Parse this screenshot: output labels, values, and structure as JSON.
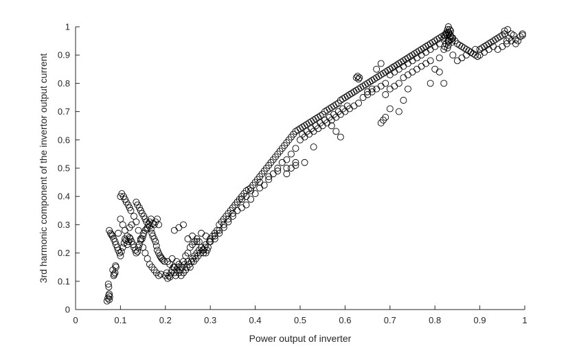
{
  "chart_data": {
    "type": "scatter",
    "title": "",
    "xlabel": "Power output of inverter",
    "ylabel": "3rd harmonic component of the invertor output current",
    "xlim": [
      0,
      1
    ],
    "ylim": [
      0,
      1
    ],
    "xticks": [
      "0",
      "0.1",
      "0.2",
      "0.3",
      "0.4",
      "0.5",
      "0.6",
      "0.7",
      "0.8",
      "0.9",
      "1"
    ],
    "yticks": [
      "0",
      "0.1",
      "0.2",
      "0.3",
      "0.4",
      "0.5",
      "0.6",
      "0.7",
      "0.8",
      "0.9",
      "1"
    ],
    "grid": false,
    "marker": "open-circle",
    "marker_color": "#000000",
    "series": [
      {
        "x": [
          0.07,
          0.072,
          0.074,
          0.075,
          0.076,
          0.074,
          0.073,
          0.075,
          0.085,
          0.088,
          0.09,
          0.083,
          0.086,
          0.089,
          0.075,
          0.078,
          0.08,
          0.082,
          0.085,
          0.088,
          0.09,
          0.093,
          0.095,
          0.098,
          0.1,
          0.102,
          0.105,
          0.108,
          0.11,
          0.112,
          0.115,
          0.118,
          0.12,
          0.122,
          0.125,
          0.128,
          0.13,
          0.133,
          0.135,
          0.138,
          0.14,
          0.142,
          0.145,
          0.148,
          0.15,
          0.152,
          0.155,
          0.158,
          0.16,
          0.162,
          0.165,
          0.168,
          0.17,
          0.172,
          0.175,
          0.178,
          0.18,
          0.182,
          0.185,
          0.188,
          0.19,
          0.192,
          0.195,
          0.198,
          0.1,
          0.103,
          0.107,
          0.11,
          0.113,
          0.117,
          0.12,
          0.123,
          0.135,
          0.138,
          0.142,
          0.145,
          0.148,
          0.152,
          0.155,
          0.158,
          0.165,
          0.168,
          0.172,
          0.175,
          0.178,
          0.182,
          0.185,
          0.095,
          0.1,
          0.105,
          0.11,
          0.115,
          0.12,
          0.125,
          0.13,
          0.135,
          0.14,
          0.145,
          0.15,
          0.155,
          0.16,
          0.165,
          0.17,
          0.175,
          0.18,
          0.185,
          0.19,
          0.2,
          0.203,
          0.205,
          0.208,
          0.21,
          0.213,
          0.215,
          0.218,
          0.22,
          0.223,
          0.225,
          0.228,
          0.23,
          0.233,
          0.235,
          0.238,
          0.24,
          0.243,
          0.245,
          0.248,
          0.25,
          0.253,
          0.255,
          0.258,
          0.26,
          0.263,
          0.265,
          0.268,
          0.27,
          0.273,
          0.275,
          0.278,
          0.28,
          0.283,
          0.285,
          0.288,
          0.29,
          0.293,
          0.295,
          0.298,
          0.205,
          0.21,
          0.215,
          0.22,
          0.225,
          0.23,
          0.235,
          0.24,
          0.245,
          0.25,
          0.255,
          0.26,
          0.265,
          0.27,
          0.275,
          0.28,
          0.285,
          0.29,
          0.22,
          0.23,
          0.24,
          0.25,
          0.26,
          0.27,
          0.28,
          0.29,
          0.3,
          0.305,
          0.31,
          0.315,
          0.32,
          0.325,
          0.33,
          0.335,
          0.34,
          0.345,
          0.35,
          0.355,
          0.36,
          0.365,
          0.37,
          0.375,
          0.38,
          0.385,
          0.39,
          0.395,
          0.4,
          0.405,
          0.41,
          0.415,
          0.42,
          0.425,
          0.43,
          0.435,
          0.44,
          0.445,
          0.45,
          0.455,
          0.46,
          0.465,
          0.47,
          0.475,
          0.48,
          0.485,
          0.49,
          0.495,
          0.3,
          0.31,
          0.32,
          0.33,
          0.34,
          0.35,
          0.36,
          0.37,
          0.38,
          0.39,
          0.4,
          0.41,
          0.42,
          0.43,
          0.44,
          0.45,
          0.46,
          0.47,
          0.48,
          0.49,
          0.31,
          0.32,
          0.33,
          0.34,
          0.35,
          0.36,
          0.37,
          0.38,
          0.39,
          0.41,
          0.43,
          0.45,
          0.47,
          0.49,
          0.5,
          0.505,
          0.51,
          0.515,
          0.52,
          0.525,
          0.53,
          0.535,
          0.54,
          0.545,
          0.55,
          0.555,
          0.56,
          0.565,
          0.57,
          0.575,
          0.58,
          0.585,
          0.59,
          0.595,
          0.6,
          0.605,
          0.61,
          0.615,
          0.62,
          0.625,
          0.63,
          0.635,
          0.64,
          0.645,
          0.65,
          0.655,
          0.66,
          0.665,
          0.67,
          0.675,
          0.68,
          0.685,
          0.69,
          0.695,
          0.5,
          0.51,
          0.52,
          0.53,
          0.54,
          0.55,
          0.56,
          0.57,
          0.58,
          0.59,
          0.6,
          0.61,
          0.62,
          0.63,
          0.64,
          0.65,
          0.66,
          0.67,
          0.68,
          0.69,
          0.505,
          0.515,
          0.525,
          0.535,
          0.545,
          0.555,
          0.565,
          0.575,
          0.585,
          0.595,
          0.605,
          0.47,
          0.48,
          0.49,
          0.51,
          0.53,
          0.57,
          0.58,
          0.59,
          0.625,
          0.628,
          0.63,
          0.632,
          0.65,
          0.66,
          0.67,
          0.68,
          0.7,
          0.705,
          0.71,
          0.715,
          0.72,
          0.725,
          0.73,
          0.735,
          0.74,
          0.745,
          0.75,
          0.755,
          0.76,
          0.765,
          0.77,
          0.775,
          0.78,
          0.785,
          0.79,
          0.795,
          0.8,
          0.805,
          0.81,
          0.815,
          0.82,
          0.825,
          0.83,
          0.835,
          0.84,
          0.845,
          0.85,
          0.855,
          0.86,
          0.865,
          0.87,
          0.875,
          0.88,
          0.885,
          0.89,
          0.895,
          0.7,
          0.71,
          0.72,
          0.73,
          0.74,
          0.75,
          0.76,
          0.77,
          0.78,
          0.79,
          0.8,
          0.81,
          0.82,
          0.83,
          0.84,
          0.85,
          0.86,
          0.87,
          0.88,
          0.89,
          0.69,
          0.7,
          0.71,
          0.72,
          0.73,
          0.74,
          0.75,
          0.76,
          0.77,
          0.78,
          0.79,
          0.81,
          0.68,
          0.685,
          0.69,
          0.7,
          0.72,
          0.73,
          0.74,
          0.79,
          0.8,
          0.81,
          0.82,
          0.82,
          0.823,
          0.826,
          0.828,
          0.83,
          0.832,
          0.834,
          0.836,
          0.838,
          0.83,
          0.828,
          0.832,
          0.825,
          0.835,
          0.822,
          0.838,
          0.827,
          0.833,
          0.829,
          0.831,
          0.9,
          0.905,
          0.91,
          0.915,
          0.92,
          0.925,
          0.93,
          0.935,
          0.94,
          0.945,
          0.95,
          0.955,
          0.96,
          0.965,
          0.97,
          0.975,
          0.98,
          0.985,
          0.99,
          0.995,
          0.9,
          0.91,
          0.92,
          0.93,
          0.94,
          0.95,
          0.96,
          0.97,
          0.98,
          0.995,
          0.955,
          0.962
        ],
        "y": [
          0.03,
          0.04,
          0.05,
          0.035,
          0.045,
          0.08,
          0.09,
          0.055,
          0.12,
          0.13,
          0.15,
          0.14,
          0.125,
          0.155,
          0.28,
          0.27,
          0.265,
          0.26,
          0.25,
          0.24,
          0.23,
          0.22,
          0.21,
          0.2,
          0.19,
          0.205,
          0.22,
          0.235,
          0.25,
          0.245,
          0.23,
          0.24,
          0.255,
          0.25,
          0.24,
          0.23,
          0.22,
          0.21,
          0.2,
          0.205,
          0.22,
          0.23,
          0.245,
          0.25,
          0.26,
          0.27,
          0.28,
          0.285,
          0.29,
          0.3,
          0.295,
          0.285,
          0.27,
          0.26,
          0.25,
          0.24,
          0.225,
          0.21,
          0.2,
          0.19,
          0.185,
          0.18,
          0.175,
          0.17,
          0.4,
          0.41,
          0.4,
          0.39,
          0.38,
          0.37,
          0.36,
          0.35,
          0.38,
          0.37,
          0.36,
          0.35,
          0.34,
          0.33,
          0.32,
          0.31,
          0.31,
          0.32,
          0.305,
          0.3,
          0.31,
          0.32,
          0.3,
          0.27,
          0.32,
          0.3,
          0.28,
          0.26,
          0.29,
          0.3,
          0.33,
          0.31,
          0.28,
          0.25,
          0.22,
          0.2,
          0.18,
          0.16,
          0.15,
          0.14,
          0.13,
          0.12,
          0.125,
          0.12,
          0.13,
          0.11,
          0.12,
          0.115,
          0.13,
          0.14,
          0.15,
          0.13,
          0.12,
          0.14,
          0.15,
          0.13,
          0.14,
          0.12,
          0.15,
          0.13,
          0.16,
          0.14,
          0.15,
          0.17,
          0.16,
          0.15,
          0.17,
          0.18,
          0.17,
          0.19,
          0.18,
          0.2,
          0.19,
          0.21,
          0.2,
          0.22,
          0.21,
          0.2,
          0.22,
          0.23,
          0.21,
          0.22,
          0.24,
          0.17,
          0.16,
          0.18,
          0.15,
          0.17,
          0.16,
          0.15,
          0.17,
          0.19,
          0.2,
          0.22,
          0.23,
          0.24,
          0.25,
          0.24,
          0.22,
          0.21,
          0.2,
          0.28,
          0.29,
          0.3,
          0.25,
          0.26,
          0.24,
          0.27,
          0.26,
          0.25,
          0.26,
          0.27,
          0.28,
          0.3,
          0.31,
          0.32,
          0.33,
          0.34,
          0.35,
          0.36,
          0.37,
          0.38,
          0.39,
          0.4,
          0.41,
          0.42,
          0.425,
          0.43,
          0.44,
          0.45,
          0.46,
          0.47,
          0.48,
          0.49,
          0.5,
          0.51,
          0.52,
          0.53,
          0.54,
          0.55,
          0.56,
          0.57,
          0.58,
          0.59,
          0.6,
          0.61,
          0.62,
          0.63,
          0.635,
          0.24,
          0.25,
          0.27,
          0.29,
          0.31,
          0.33,
          0.35,
          0.36,
          0.37,
          0.39,
          0.41,
          0.43,
          0.44,
          0.46,
          0.48,
          0.5,
          0.52,
          0.53,
          0.55,
          0.57,
          0.26,
          0.28,
          0.3,
          0.32,
          0.34,
          0.38,
          0.39,
          0.4,
          0.42,
          0.45,
          0.47,
          0.49,
          0.5,
          0.52,
          0.64,
          0.645,
          0.65,
          0.655,
          0.66,
          0.665,
          0.67,
          0.675,
          0.68,
          0.685,
          0.69,
          0.7,
          0.705,
          0.71,
          0.715,
          0.72,
          0.725,
          0.73,
          0.74,
          0.745,
          0.75,
          0.755,
          0.76,
          0.765,
          0.77,
          0.775,
          0.78,
          0.785,
          0.79,
          0.795,
          0.8,
          0.805,
          0.81,
          0.815,
          0.82,
          0.825,
          0.83,
          0.835,
          0.84,
          0.845,
          0.6,
          0.61,
          0.62,
          0.63,
          0.64,
          0.65,
          0.66,
          0.67,
          0.68,
          0.69,
          0.7,
          0.71,
          0.72,
          0.73,
          0.75,
          0.76,
          0.77,
          0.78,
          0.79,
          0.8,
          0.62,
          0.63,
          0.64,
          0.65,
          0.66,
          0.67,
          0.68,
          0.69,
          0.7,
          0.71,
          0.72,
          0.48,
          0.5,
          0.51,
          0.52,
          0.575,
          0.65,
          0.63,
          0.61,
          0.82,
          0.825,
          0.815,
          0.82,
          0.77,
          0.78,
          0.85,
          0.87,
          0.85,
          0.855,
          0.86,
          0.865,
          0.87,
          0.875,
          0.88,
          0.885,
          0.89,
          0.895,
          0.9,
          0.905,
          0.91,
          0.915,
          0.92,
          0.925,
          0.93,
          0.935,
          0.94,
          0.945,
          0.95,
          0.955,
          0.96,
          0.965,
          0.97,
          0.975,
          0.98,
          0.97,
          0.96,
          0.95,
          0.94,
          0.935,
          0.93,
          0.925,
          0.92,
          0.915,
          0.91,
          0.905,
          0.9,
          0.895,
          0.83,
          0.84,
          0.85,
          0.86,
          0.87,
          0.88,
          0.89,
          0.9,
          0.91,
          0.92,
          0.93,
          0.94,
          0.92,
          0.95,
          0.9,
          0.88,
          0.89,
          0.9,
          0.91,
          0.92,
          0.76,
          0.78,
          0.79,
          0.8,
          0.82,
          0.83,
          0.84,
          0.85,
          0.86,
          0.87,
          0.88,
          0.89,
          0.66,
          0.67,
          0.68,
          0.71,
          0.7,
          0.74,
          0.78,
          0.8,
          0.85,
          0.84,
          0.8,
          0.96,
          0.97,
          0.98,
          0.99,
          1.0,
          0.975,
          0.965,
          0.955,
          0.945,
          0.935,
          0.925,
          0.95,
          0.94,
          0.985,
          0.93,
          0.96,
          0.97,
          0.99,
          0.95,
          0.98,
          0.92,
          0.925,
          0.93,
          0.935,
          0.94,
          0.945,
          0.95,
          0.955,
          0.96,
          0.965,
          0.97,
          0.975,
          0.95,
          0.96,
          0.975,
          0.97,
          0.955,
          0.95,
          0.965,
          0.975,
          0.9,
          0.91,
          0.92,
          0.93,
          0.92,
          0.93,
          0.94,
          0.95,
          0.94,
          0.97,
          0.985,
          0.99
        ]
      }
    ]
  }
}
